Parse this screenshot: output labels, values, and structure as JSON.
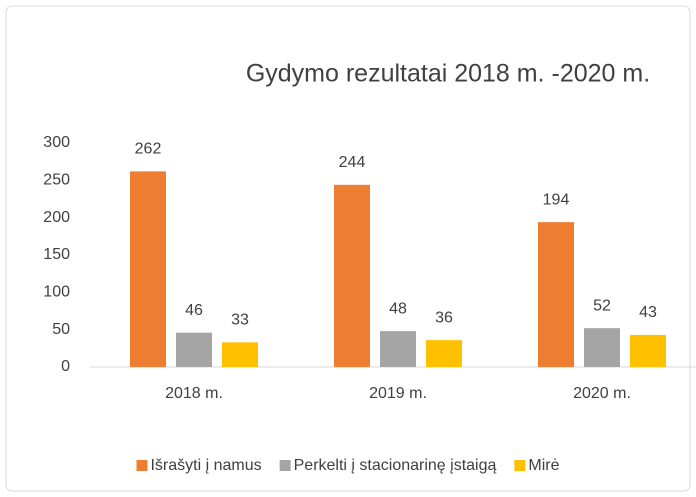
{
  "chart_data": {
    "type": "bar",
    "title": "Gydymo rezultatai 2018 m. -2020 m.",
    "categories": [
      "2018 m.",
      "2019 m.",
      "2020 m."
    ],
    "series": [
      {
        "name": "Išrašyti į namus",
        "color": "#ED7D31",
        "values": [
          262,
          244,
          194
        ]
      },
      {
        "name": "Perkelti į stacionarinę įstaigą",
        "color": "#A5A5A5",
        "values": [
          46,
          48,
          52
        ]
      },
      {
        "name": "Mirė",
        "color": "#FFC000",
        "values": [
          33,
          36,
          43
        ]
      }
    ],
    "ylim": [
      0,
      300
    ],
    "yticks": [
      0,
      50,
      100,
      150,
      200,
      250,
      300
    ],
    "grid": false,
    "legend": "bottom"
  }
}
